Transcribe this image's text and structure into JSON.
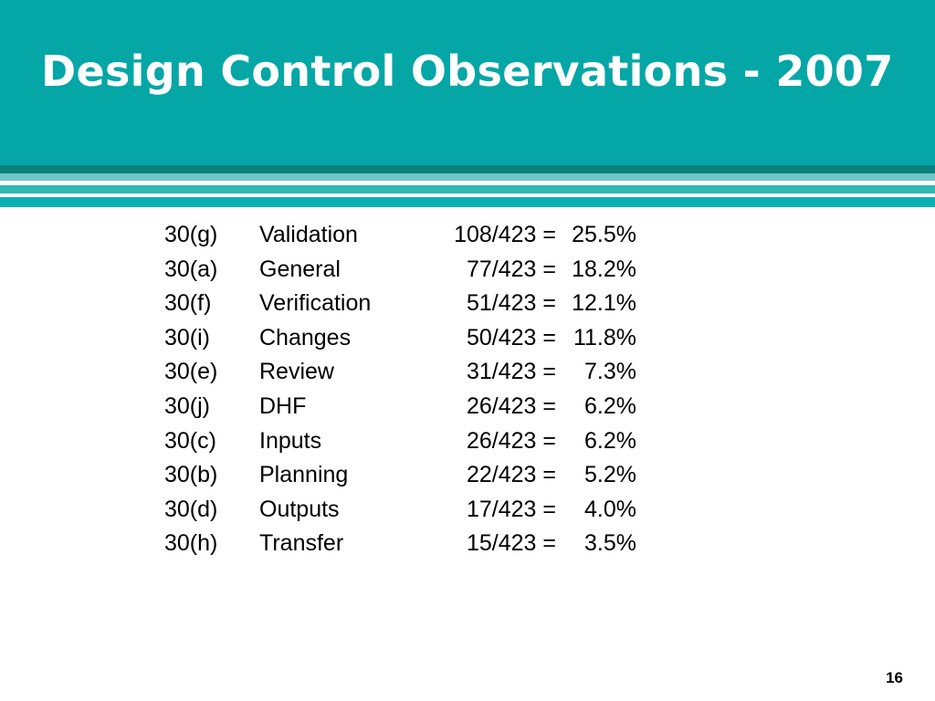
{
  "slide": {
    "title": "Design Control Observations - 2007",
    "page_number": "16"
  },
  "colors": {
    "title_band": "#04a6a6",
    "title_text": "#ffffff",
    "stripe_dark": "#0c7f7f",
    "stripe_light": "#6ec6c4",
    "stripe_mid": "#2fb7b3",
    "stripe_bottom": "#0ab0b0",
    "body_text": "#000000"
  },
  "observations": [
    {
      "code": "30(g)",
      "name": "Validation",
      "ratio": "108/423 =",
      "percent": "25.5%"
    },
    {
      "code": "30(a)",
      "name": "General",
      "ratio": "77/423 =",
      "percent": "18.2%"
    },
    {
      "code": "30(f)",
      "name": "Verification",
      "ratio": "51/423 =",
      "percent": "12.1%"
    },
    {
      "code": "30(i)",
      "name": "Changes",
      "ratio": "50/423 =",
      "percent": "11.8%"
    },
    {
      "code": "30(e)",
      "name": "Review",
      "ratio": "31/423 =",
      "percent": "7.3%"
    },
    {
      "code": "30(j)",
      "name": "DHF",
      "ratio": "26/423 =",
      "percent": "6.2%"
    },
    {
      "code": "30(c)",
      "name": "Inputs",
      "ratio": "26/423 =",
      "percent": "6.2%"
    },
    {
      "code": "30(b)",
      "name": "Planning",
      "ratio": "22/423 =",
      "percent": "5.2%"
    },
    {
      "code": "30(d)",
      "name": "Outputs",
      "ratio": "17/423 =",
      "percent": "4.0%"
    },
    {
      "code": "30(h)",
      "name": "Transfer",
      "ratio": "15/423 =",
      "percent": "3.5%"
    }
  ]
}
